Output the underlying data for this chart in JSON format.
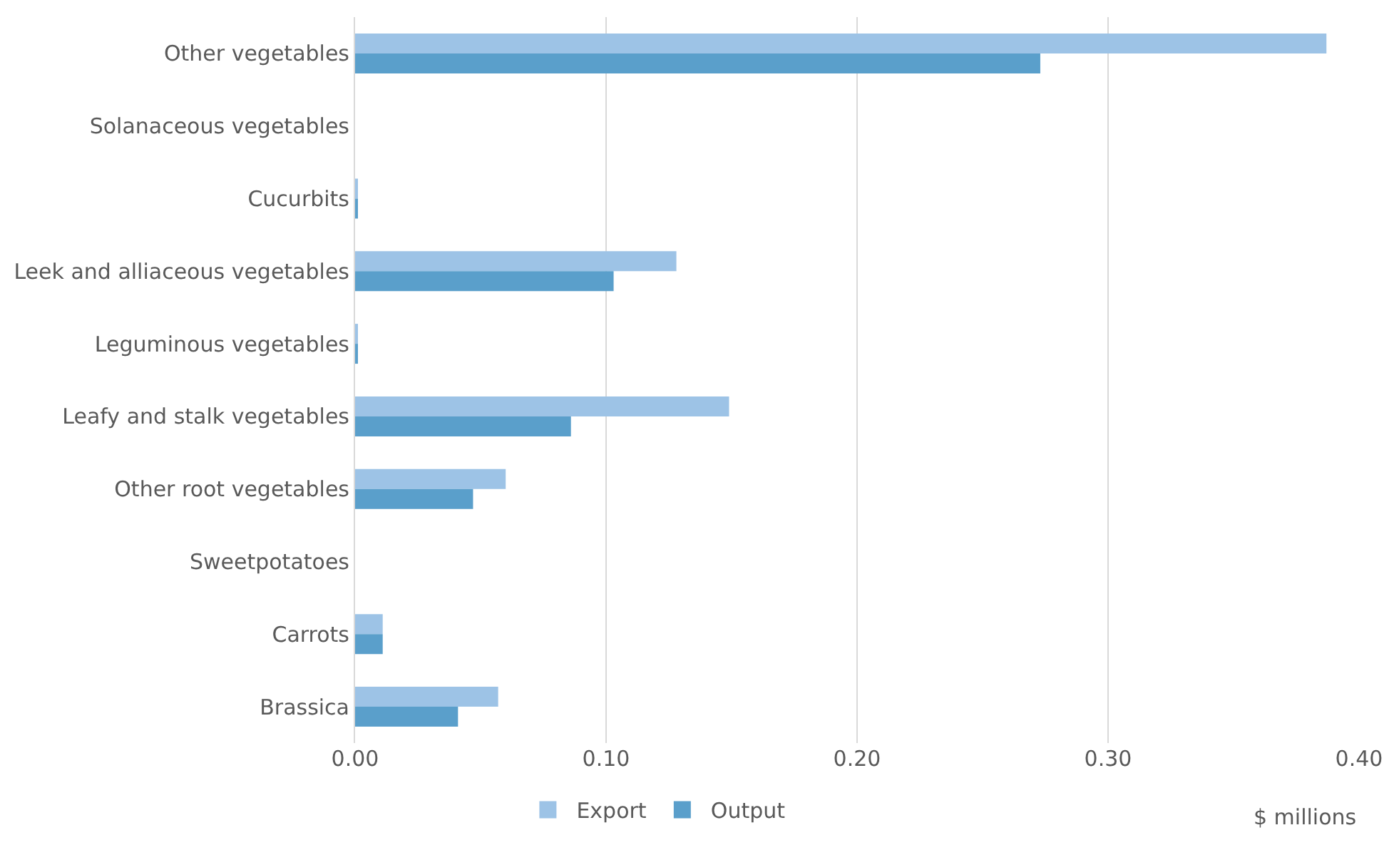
{
  "chart_data": {
    "type": "bar",
    "orientation": "horizontal",
    "xlabel": "$ millions",
    "categories": [
      "Other vegetables",
      "Solanaceous vegetables",
      "Cucurbits",
      "Leek and alliaceous vegetables",
      "Leguminous vegetables",
      "Leafy and stalk vegetables",
      "Other root vegetables",
      "Sweetpotatoes",
      "Carrots",
      "Brassica"
    ],
    "series": [
      {
        "name": "Export",
        "color": "#9dc3e6",
        "values": [
          0.387,
          0,
          0.001,
          0.128,
          0.001,
          0.149,
          0.06,
          0,
          0.011,
          0.057
        ]
      },
      {
        "name": "Output",
        "color": "#5a9fcb",
        "values": [
          0.273,
          0,
          0.001,
          0.103,
          0.001,
          0.086,
          0.047,
          0,
          0.011,
          0.041
        ]
      }
    ],
    "xlim": [
      0,
      0.4
    ],
    "xticks": [
      {
        "value": 0,
        "label": "0.00"
      },
      {
        "value": 0.1,
        "label": "0.10"
      },
      {
        "value": 0.2,
        "label": "0.20"
      },
      {
        "value": 0.3,
        "label": "0.30"
      },
      {
        "value": 0.4,
        "label": "0.40"
      }
    ],
    "grid": "x",
    "legend": "bottom"
  }
}
